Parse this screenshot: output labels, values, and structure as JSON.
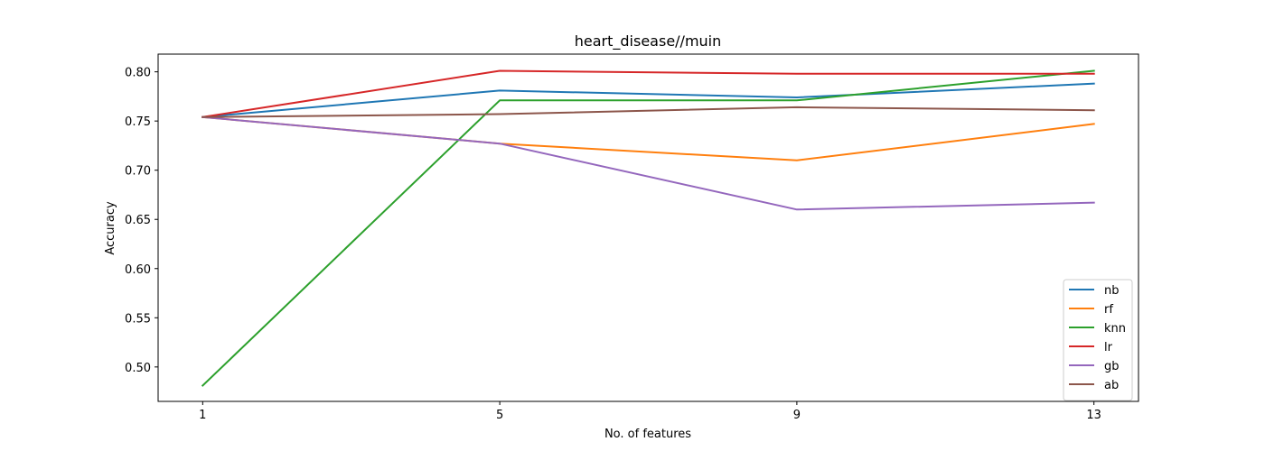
{
  "chart_data": {
    "type": "line",
    "title": "heart_disease//muin",
    "xlabel": "No. of features",
    "ylabel": "Accuracy",
    "x": [
      1,
      5,
      9,
      13
    ],
    "xticks": [
      "1",
      "5",
      "9",
      "13"
    ],
    "yticks": [
      "0.50",
      "0.55",
      "0.60",
      "0.65",
      "0.70",
      "0.75",
      "0.80"
    ],
    "xlim": [
      0.4,
      13.6
    ],
    "ylim": [
      0.465,
      0.818
    ],
    "grid": false,
    "legend_position": "lower-right",
    "series": [
      {
        "name": "nb",
        "color": "#1f77b4",
        "values": [
          0.754,
          0.781,
          0.774,
          0.788
        ]
      },
      {
        "name": "rf",
        "color": "#ff7f0e",
        "values": [
          0.754,
          0.727,
          0.71,
          0.747
        ]
      },
      {
        "name": "knn",
        "color": "#2ca02c",
        "values": [
          0.481,
          0.771,
          0.771,
          0.801
        ]
      },
      {
        "name": "lr",
        "color": "#d62728",
        "values": [
          0.754,
          0.801,
          0.798,
          0.798
        ]
      },
      {
        "name": "gb",
        "color": "#9467bd",
        "values": [
          0.754,
          0.727,
          0.66,
          0.667
        ]
      },
      {
        "name": "ab",
        "color": "#8c564b",
        "values": [
          0.754,
          0.757,
          0.764,
          0.761
        ]
      }
    ]
  }
}
